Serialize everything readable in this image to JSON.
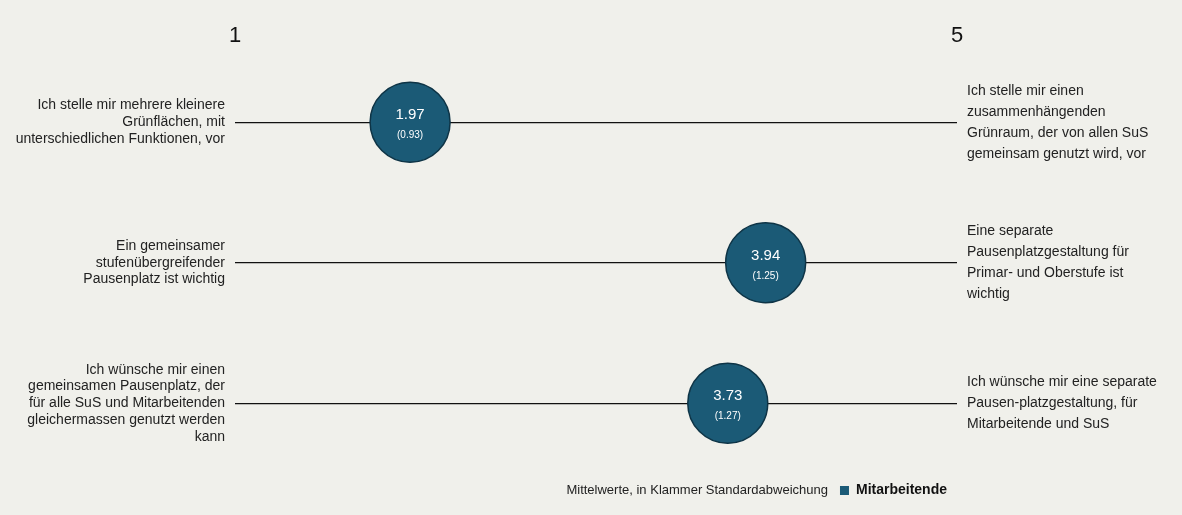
{
  "chart_data": {
    "type": "scatter",
    "orientation": "horizontal",
    "categories": [
      "Ich stelle mir mehrere kleinere Grünflächen, mit unterschiedlichen Funktionen, vor",
      "Ein gemeinsamer stufenübergreifender Pausenplatz ist wichtig",
      "Ich wünsche mir einen gemeinsamen Pausenplatz, der für alle SuS und Mitarbeitenden gleichermassen genutzt werden kann"
    ],
    "series": [
      {
        "name": "Mitarbeitende",
        "color": "#1b5a76",
        "values": [
          1.97,
          3.94,
          3.73
        ],
        "value_labels": [
          "1.97 (0.93)",
          "3.94 (1.25)",
          "3.73 (1.27)"
        ]
      }
    ],
    "xlim": [
      1,
      5
    ],
    "xticks": [
      1,
      5
    ],
    "grid": "y",
    "marker": "circle",
    "legend": "bottom right",
    "annotations": [
      "Ich stelle mir einen zusammenhängenden Grünraum, der von allen SuS gemeinsam genutzt wird, vor",
      "Eine separate Pausenplatzgestaltung für Primar- und Oberstufe ist wichtig",
      "Ich wünsche mir eine separate Pausen-platzgestaltung, für Mitarbeitende und SuS",
      "Mittelwerte, in Klammer Standardabweichung"
    ]
  }
}
